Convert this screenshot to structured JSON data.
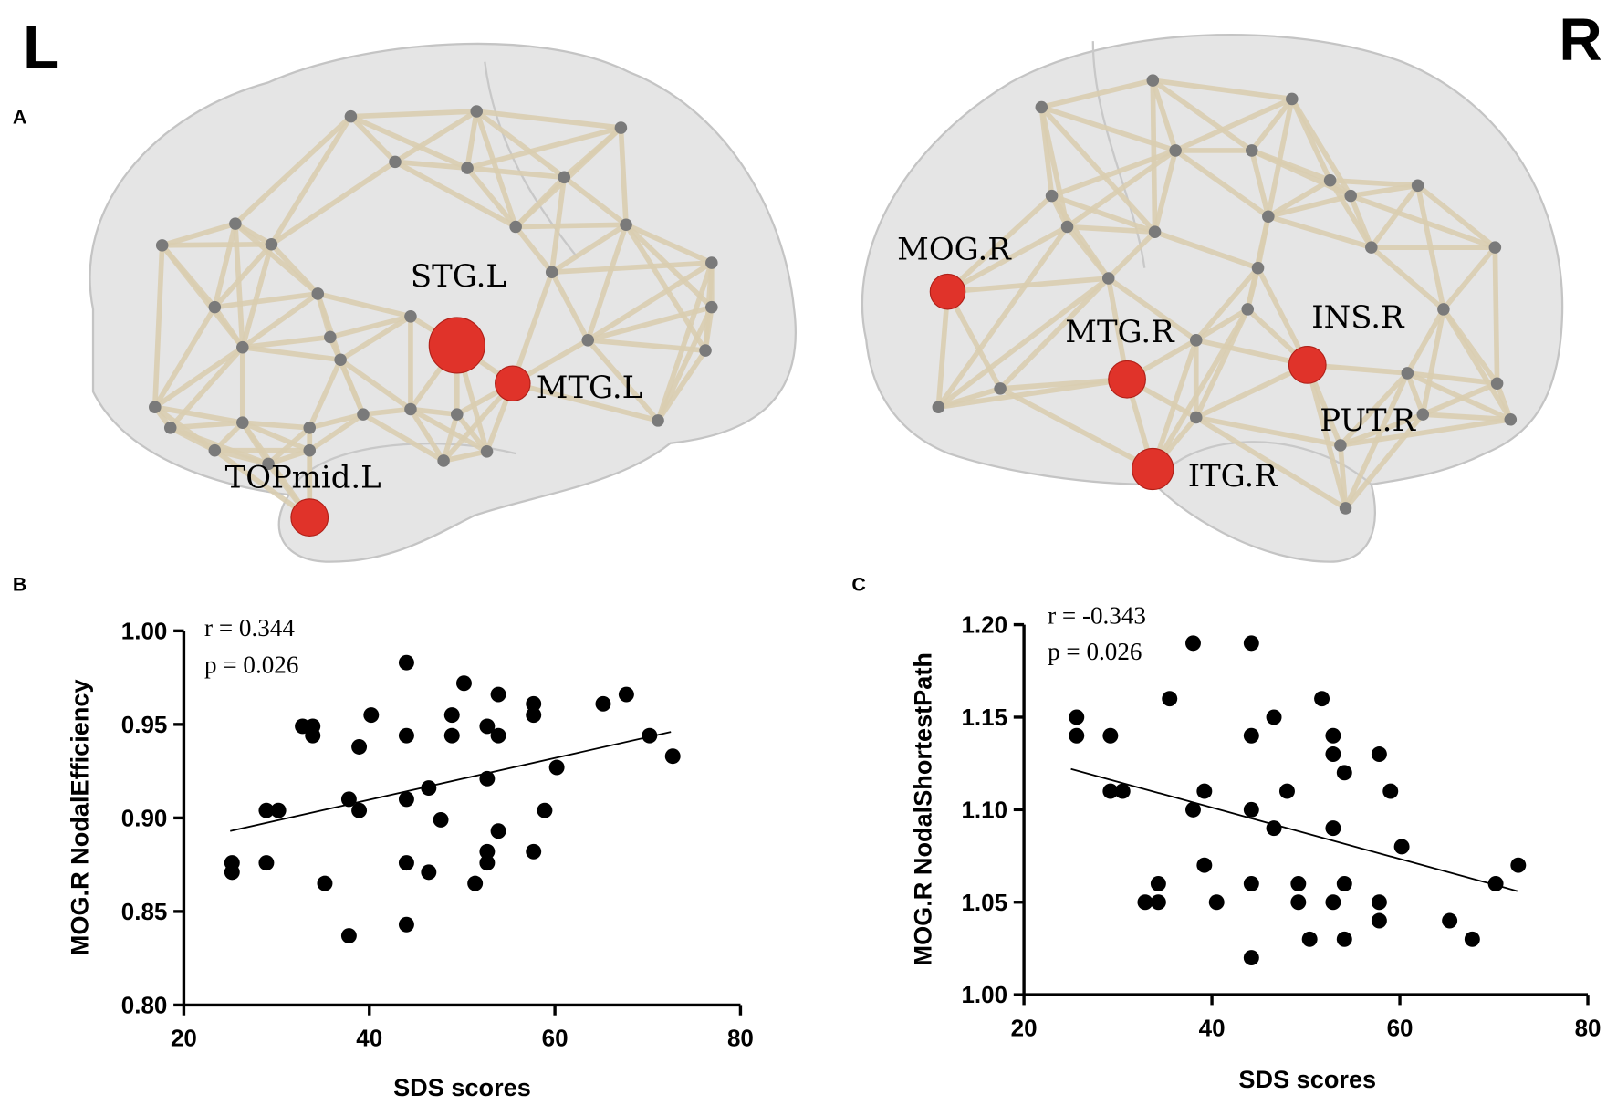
{
  "hemisphere_labels": {
    "left": "L",
    "right": "R"
  },
  "panel_labels": {
    "a": "A",
    "b": "B",
    "c": "C"
  },
  "brain_left": {
    "regions": [
      "STG.L",
      "MTG.L",
      "TOPmid.L"
    ]
  },
  "brain_right": {
    "regions": [
      "MOG.R",
      "MTG.R",
      "INS.R",
      "PUT.R",
      "ITG.R"
    ]
  },
  "colors": {
    "hub_node": "#e0332a",
    "node": "#7a7a7a",
    "edge": "#d9cdb0",
    "brain": "#d4d4d4"
  },
  "chart_data": [
    {
      "type": "scatter",
      "panel": "B",
      "xlabel": "SDS scores",
      "ylabel": "MOG.R NodalEfficiency",
      "xlim": [
        20,
        80
      ],
      "ylim": [
        0.8,
        1.0
      ],
      "xticks": [
        "20",
        "40",
        "60",
        "80"
      ],
      "yticks": [
        "0.80",
        "0.85",
        "0.90",
        "0.95",
        "1.00"
      ],
      "stat_r": "r = 0.344",
      "stat_p": "p = 0.026",
      "grid": false,
      "trendline": {
        "x": [
          25,
          72.5
        ],
        "y": [
          0.893,
          0.946
        ]
      },
      "x": [
        25.2,
        25.2,
        28.9,
        28.9,
        30.2,
        32.8,
        33.9,
        33.9,
        35.2,
        37.8,
        37.8,
        38.9,
        38.9,
        40.2,
        44.0,
        44.0,
        44.0,
        44.0,
        44.0,
        46.4,
        46.4,
        47.7,
        48.9,
        48.9,
        50.2,
        51.4,
        52.7,
        52.7,
        52.7,
        52.7,
        53.9,
        53.9,
        53.9,
        57.7,
        57.7,
        57.7,
        58.9,
        60.2,
        65.2,
        67.7,
        70.2,
        72.7
      ],
      "y": [
        0.876,
        0.871,
        0.876,
        0.904,
        0.904,
        0.949,
        0.949,
        0.944,
        0.865,
        0.91,
        0.837,
        0.938,
        0.904,
        0.955,
        0.983,
        0.944,
        0.91,
        0.876,
        0.843,
        0.916,
        0.871,
        0.899,
        0.955,
        0.944,
        0.972,
        0.865,
        0.949,
        0.921,
        0.882,
        0.876,
        0.944,
        0.966,
        0.893,
        0.961,
        0.955,
        0.882,
        0.904,
        0.927,
        0.961,
        0.966,
        0.944,
        0.933
      ]
    },
    {
      "type": "scatter",
      "panel": "C",
      "xlabel": "SDS scores",
      "ylabel": "MOG.R NodalShortestPath",
      "xlim": [
        20,
        80
      ],
      "ylim": [
        1.0,
        1.2
      ],
      "xticks": [
        "20",
        "40",
        "60",
        "80"
      ],
      "yticks": [
        "1.00",
        "1.05",
        "1.10",
        "1.15",
        "1.20"
      ],
      "stat_r": "r = -0.343",
      "stat_p": "p = 0.026",
      "grid": false,
      "trendline": {
        "x": [
          25,
          72.5
        ],
        "y": [
          1.122,
          1.056
        ]
      },
      "x": [
        25.6,
        25.6,
        29.2,
        29.2,
        30.5,
        32.9,
        34.3,
        34.3,
        35.5,
        38.0,
        38.0,
        39.2,
        39.2,
        40.5,
        44.2,
        44.2,
        44.2,
        44.2,
        44.2,
        46.6,
        46.6,
        48.0,
        49.2,
        49.2,
        50.4,
        51.7,
        52.9,
        52.9,
        52.9,
        52.9,
        54.1,
        54.1,
        54.1,
        57.8,
        57.8,
        57.8,
        59.0,
        60.2,
        65.3,
        67.7,
        70.2,
        72.6
      ],
      "y": [
        1.15,
        1.14,
        1.14,
        1.11,
        1.11,
        1.05,
        1.05,
        1.06,
        1.16,
        1.19,
        1.1,
        1.11,
        1.07,
        1.05,
        1.19,
        1.14,
        1.1,
        1.06,
        1.02,
        1.15,
        1.09,
        1.11,
        1.06,
        1.05,
        1.03,
        1.16,
        1.14,
        1.13,
        1.09,
        1.05,
        1.12,
        1.06,
        1.03,
        1.13,
        1.05,
        1.04,
        1.11,
        1.08,
        1.04,
        1.03,
        1.06,
        1.07
      ]
    }
  ]
}
